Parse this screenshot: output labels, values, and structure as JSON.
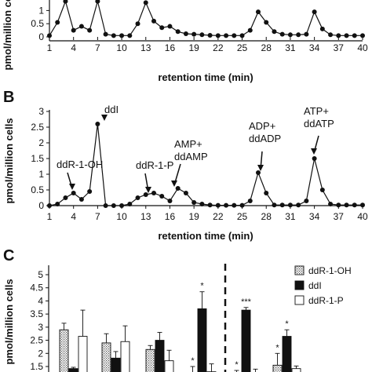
{
  "chart_data": [
    {
      "panel": "A",
      "type": "line",
      "xlabel": "retention time (min)",
      "ylabel": "pmol/million cells",
      "x_ticks": [
        "1",
        "4",
        "7",
        "10",
        "13",
        "16",
        "19",
        "22",
        "25",
        "28",
        "31",
        "34",
        "37",
        "40"
      ],
      "y_ticks": [
        "0",
        "0.5",
        "1"
      ],
      "ylim": [
        0,
        1.25
      ],
      "xlim": [
        1,
        40
      ],
      "series": [
        {
          "x": [
            1,
            2,
            3,
            4,
            5,
            6,
            7,
            8,
            9,
            10,
            11,
            12,
            13,
            14,
            15,
            16,
            17,
            18,
            19,
            20,
            21,
            22,
            23,
            24,
            25,
            26,
            27,
            28,
            29,
            30,
            31,
            32,
            33,
            34,
            35,
            36,
            37,
            38,
            39,
            40
          ],
          "values": [
            0.05,
            0.55,
            1.35,
            0.25,
            0.4,
            0.25,
            1.35,
            0.1,
            0.05,
            0.05,
            0.05,
            0.5,
            1.3,
            0.6,
            0.35,
            0.4,
            0.2,
            0.12,
            0.1,
            0.08,
            0.06,
            0.05,
            0.05,
            0.05,
            0.05,
            0.25,
            0.95,
            0.55,
            0.2,
            0.1,
            0.08,
            0.08,
            0.1,
            0.95,
            0.3,
            0.08,
            0.05,
            0.05,
            0.05,
            0.05
          ]
        }
      ]
    },
    {
      "panel": "B",
      "type": "line",
      "xlabel": "retention time (min)",
      "ylabel": "pmol/million cells",
      "x_ticks": [
        "1",
        "4",
        "7",
        "10",
        "13",
        "16",
        "19",
        "22",
        "25",
        "28",
        "31",
        "34",
        "37",
        "40"
      ],
      "y_ticks": [
        "0",
        "0.5",
        "1",
        "1.5",
        "2",
        "2.5",
        "3"
      ],
      "ylim": [
        0,
        3
      ],
      "xlim": [
        1,
        40
      ],
      "series": [
        {
          "x": [
            1,
            2,
            3,
            4,
            5,
            6,
            7,
            8,
            9,
            10,
            11,
            12,
            13,
            14,
            15,
            16,
            17,
            18,
            19,
            20,
            21,
            22,
            23,
            24,
            25,
            26,
            27,
            28,
            29,
            30,
            31,
            32,
            33,
            34,
            35,
            36,
            37,
            38,
            39,
            40
          ],
          "values": [
            0,
            0.05,
            0.25,
            0.4,
            0.2,
            0.45,
            2.6,
            0,
            0,
            0,
            0.05,
            0.25,
            0.35,
            0.4,
            0.3,
            0.15,
            0.55,
            0.4,
            0.1,
            0.05,
            0.02,
            0.01,
            0.01,
            0.01,
            0.01,
            0.15,
            1.05,
            0.4,
            0.02,
            0.02,
            0.02,
            0.02,
            0.15,
            1.5,
            0.5,
            0.05,
            0.02,
            0.02,
            0.02,
            0.02
          ]
        }
      ],
      "annotations": [
        {
          "lines": [
            "ddR-1-OH"
          ],
          "x": 3
        },
        {
          "lines": [
            "ddI"
          ],
          "x": 7
        },
        {
          "lines": [
            "ddR-1-P"
          ],
          "x": 14
        },
        {
          "lines": [
            "AMP+",
            "ddAMP"
          ],
          "x": 17
        },
        {
          "lines": [
            "ADP+",
            "ddADP"
          ],
          "x": 27
        },
        {
          "lines": [
            "ATP+",
            "ddATP"
          ],
          "x": 34
        }
      ]
    },
    {
      "panel": "C",
      "type": "bar",
      "ylabel": "pmol/million cells",
      "y_ticks": [
        "1.5",
        "2",
        "2.5",
        "3",
        "3.5",
        "4",
        "4.5",
        "5"
      ],
      "ylim": [
        1.5,
        5.2
      ],
      "legend": [
        "ddR-1-OH",
        "ddI",
        "ddR-1-P"
      ],
      "legend_position": "right",
      "groups": [
        {
          "ddR-1-OH": 2.9,
          "ddI": 1.42,
          "ddR-1-P": 2.65,
          "err": [
            0.25,
            0.05,
            1.0
          ],
          "stars": [
            "",
            "",
            ""
          ]
        },
        {
          "ddR-1-OH": 2.4,
          "ddI": 1.82,
          "ddR-1-P": 2.45,
          "err": [
            0.35,
            0.25,
            0.6
          ],
          "stars": [
            "",
            "",
            ""
          ]
        },
        {
          "ddR-1-OH": 2.15,
          "ddI": 2.5,
          "ddR-1-P": 1.72,
          "err": [
            0.15,
            0.3,
            0.4
          ],
          "stars": [
            "",
            "",
            ""
          ]
        },
        {
          "ddR-1-OH": 1.25,
          "ddI": 3.7,
          "ddR-1-P": 1.3,
          "err": [
            0.25,
            0.65,
            0.3
          ],
          "stars": [
            "*",
            "*",
            ""
          ]
        },
        {
          "ddR-1-OH": 1.25,
          "ddI": 3.65,
          "ddR-1-P": 1.2,
          "err": [
            0.1,
            0.1,
            0.2
          ],
          "stars": [
            "*",
            "***",
            ""
          ]
        },
        {
          "ddR-1-OH": 1.55,
          "ddI": 2.65,
          "ddR-1-P": 1.42,
          "err": [
            0.45,
            0.25,
            0.1
          ],
          "stars": [
            "*",
            "*",
            ""
          ]
        }
      ]
    }
  ],
  "labels": {
    "a": "A",
    "b": "B",
    "c": "C"
  }
}
